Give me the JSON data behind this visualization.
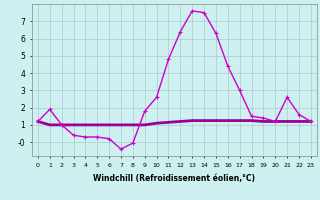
{
  "xlabel": "Windchill (Refroidissement éolien,°C)",
  "ylabel": "",
  "background_color": "#cff0f0",
  "grid_color": "#aacccc",
  "line_color": "#990099",
  "line_color2": "#cc00cc",
  "xlim": [
    -0.5,
    23.5
  ],
  "ylim": [
    -0.8,
    8.0
  ],
  "xticks": [
    0,
    1,
    2,
    3,
    4,
    5,
    6,
    7,
    8,
    9,
    10,
    11,
    12,
    13,
    14,
    15,
    16,
    17,
    18,
    19,
    20,
    21,
    22,
    23
  ],
  "yticks": [
    0,
    1,
    2,
    3,
    4,
    5,
    6,
    7
  ],
  "ytick_labels": [
    "-0",
    "1",
    "2",
    "3",
    "4",
    "5",
    "6",
    "7"
  ],
  "series1_x": [
    0,
    1,
    2,
    3,
    4,
    5,
    6,
    7,
    8,
    9,
    10,
    11,
    12,
    13,
    14,
    15,
    16,
    17,
    18,
    19,
    20,
    21,
    22,
    23
  ],
  "series1_y": [
    1.2,
    1.9,
    1.0,
    0.4,
    0.3,
    0.3,
    0.2,
    -0.4,
    -0.05,
    1.8,
    2.6,
    4.8,
    6.4,
    7.6,
    7.5,
    6.3,
    4.4,
    3.0,
    1.5,
    1.4,
    1.2,
    2.6,
    1.6,
    1.2
  ],
  "series2_x": [
    0,
    1,
    2,
    3,
    4,
    5,
    6,
    7,
    8,
    9,
    10,
    11,
    12,
    13,
    14,
    15,
    16,
    17,
    18,
    19,
    20,
    21,
    22,
    23
  ],
  "series2_y": [
    1.2,
    1.0,
    1.0,
    1.0,
    1.0,
    1.0,
    1.0,
    1.0,
    1.0,
    1.0,
    1.1,
    1.15,
    1.2,
    1.25,
    1.25,
    1.25,
    1.25,
    1.25,
    1.25,
    1.2,
    1.2,
    1.2,
    1.2,
    1.2
  ]
}
